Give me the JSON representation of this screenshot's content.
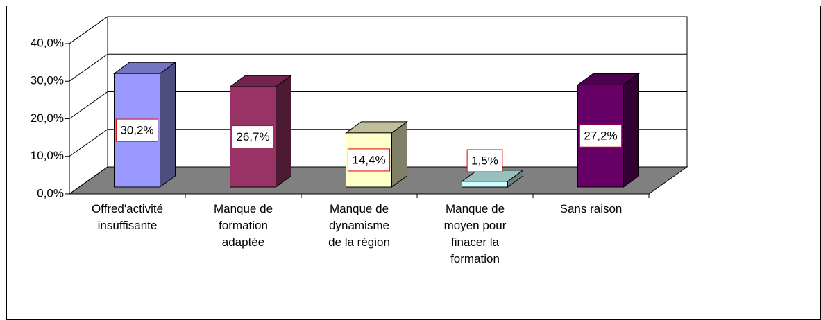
{
  "chart_data": {
    "type": "bar3d",
    "categories": [
      "Offred'activité\ninsuffisante",
      "Manque de\nformation\nadaptée",
      "Manque de\ndynamisme\nde la région",
      "Manque de\nmoyen pour\nfinacer la\nformation",
      "Sans raison"
    ],
    "values": [
      30.2,
      26.7,
      14.4,
      1.5,
      27.2
    ],
    "value_labels": [
      "30,2%",
      "26,7%",
      "14,4%",
      "1,5%",
      "27,2%"
    ],
    "colors": [
      "#9999ff",
      "#993366",
      "#ffffcc",
      "#ccffff",
      "#660066"
    ],
    "ylim": [
      0,
      40
    ],
    "yticks": [
      {
        "value": 0,
        "label": "0,0%"
      },
      {
        "value": 10,
        "label": "10,0%"
      },
      {
        "value": 20,
        "label": "20,0%"
      },
      {
        "value": 30,
        "label": "30,0%"
      },
      {
        "value": 40,
        "label": "40,0%"
      }
    ],
    "grid": true
  }
}
